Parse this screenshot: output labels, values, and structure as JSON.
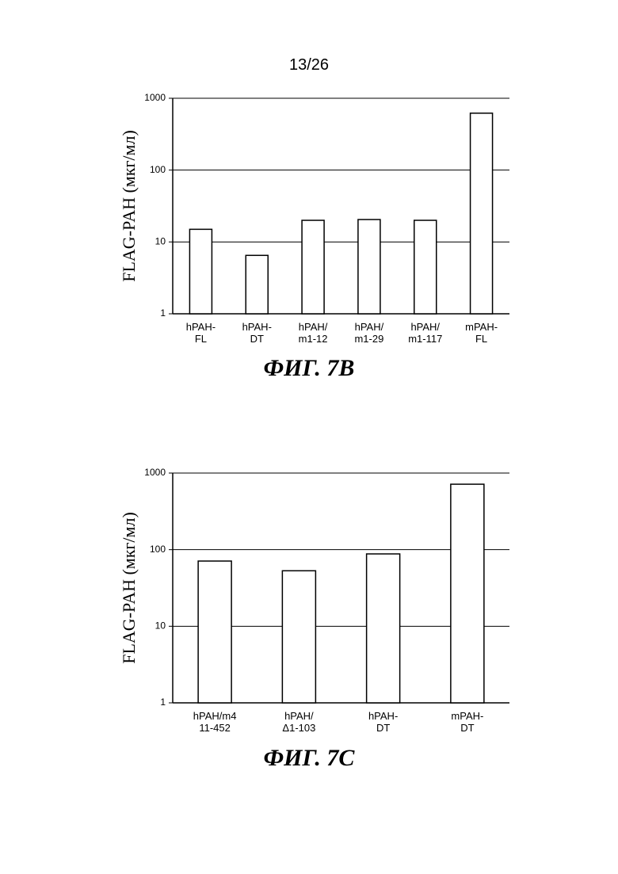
{
  "page_number": "13/26",
  "chart_data": [
    {
      "type": "bar",
      "caption": "ФИГ. 7B",
      "ylabel": "FLAG-PAH (мкг/мл)",
      "categories": [
        "hPAH-\nFL",
        "hPAH-\nDT",
        "hPAH/\nm1-12",
        "hPAH/\nm1-29",
        "hPAH/\nm1-117",
        "mPAH-\nFL"
      ],
      "values": [
        15,
        6.5,
        20,
        20.5,
        20,
        620
      ],
      "color": "#ffffff",
      "edgecolor": "#000000",
      "log_scale": true,
      "grid": true,
      "ylim": [
        1,
        1000
      ],
      "yticks": [
        1,
        10,
        100,
        1000
      ]
    },
    {
      "type": "bar",
      "caption": "ФИГ. 7C",
      "ylabel": "FLAG-PAH (мкг/мл)",
      "categories": [
        "hPAH/m4\n11-452",
        "hPAH/\nΔ1-103",
        "hPAH-\nDT",
        "mPAH-\nDT"
      ],
      "values": [
        71,
        53,
        88,
        715
      ],
      "color": "#ffffff",
      "edgecolor": "#000000",
      "log_scale": true,
      "grid": true,
      "ylim": [
        1,
        1000
      ],
      "yticks": [
        1,
        10,
        100,
        1000
      ]
    }
  ]
}
